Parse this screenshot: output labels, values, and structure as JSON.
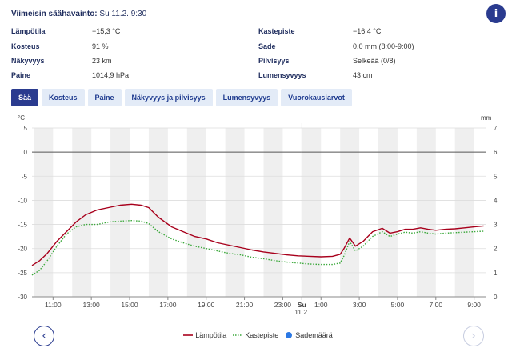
{
  "latest": {
    "label": "Viimeisin säähavainto:",
    "value": "Su 11.2. 9:30"
  },
  "info_icon": "i",
  "observations": {
    "left": [
      {
        "label": "Lämpötila",
        "value": "−15,3 °C"
      },
      {
        "label": "Kosteus",
        "value": "91 %"
      },
      {
        "label": "Näkyvyys",
        "value": "23 km"
      },
      {
        "label": "Paine",
        "value": "1014,9 hPa"
      }
    ],
    "right": [
      {
        "label": "Kastepiste",
        "value": "−16,4 °C"
      },
      {
        "label": "Sade",
        "value": "0,0 mm (8:00-9:00)"
      },
      {
        "label": "Pilvisyys",
        "value": "Selkeää (0/8)"
      },
      {
        "label": "Lumensyvyys",
        "value": "43 cm"
      }
    ]
  },
  "tabs": [
    "Sää",
    "Kosteus",
    "Paine",
    "Näkyvyys ja pilvisyys",
    "Lumensyvyys",
    "Vuorokausiarvot"
  ],
  "active_tab": 0,
  "legend": [
    "Lämpötila",
    "Kastepiste",
    "Sademäärä"
  ],
  "nav": {
    "prev": "‹",
    "next": "›"
  },
  "colors": {
    "temperature": "#a8001c",
    "dewpoint": "#3aa83a",
    "precip": "#2b78e4",
    "accent": "#2a3b8f"
  },
  "chart_data": {
    "type": "line",
    "y_left_unit": "°C",
    "y_right_unit": "mm",
    "ylim_left": [
      -30,
      5
    ],
    "ylim_right": [
      0,
      7
    ],
    "y_left_ticks": [
      "5",
      "0",
      "-5",
      "-10",
      "-15",
      "-20",
      "-25",
      "-30"
    ],
    "y_right_ticks": [
      "7",
      "6",
      "5",
      "4",
      "3",
      "2",
      "1",
      "0"
    ],
    "x_ticks": [
      "11:00",
      "13:00",
      "15:00",
      "17:00",
      "19:00",
      "21:00",
      "23:00",
      "Su",
      "1:00",
      "3:00",
      "5:00",
      "7:00",
      "9:00"
    ],
    "x_tick_hours": [
      11,
      13,
      15,
      17,
      19,
      21,
      23,
      24,
      25,
      27,
      29,
      31,
      33
    ],
    "x_day_label": "11.2.",
    "xlim_hours": [
      9.9,
      33.6
    ],
    "series": [
      {
        "name": "Lämpötila",
        "x": [
          9.9,
          10.3,
          10.7,
          11.2,
          11.7,
          12.2,
          12.7,
          13.3,
          13.9,
          14.5,
          15.1,
          15.6,
          16.0,
          16.5,
          17.2,
          17.8,
          18.4,
          19.0,
          19.6,
          20.2,
          20.8,
          21.4,
          22.0,
          22.6,
          23.2,
          23.8,
          24.4,
          25.0,
          25.6,
          26.0,
          26.2,
          26.5,
          26.8,
          27.2,
          27.7,
          28.2,
          28.6,
          29.0,
          29.4,
          29.8,
          30.2,
          30.6,
          31.0,
          31.5,
          32.0,
          32.5,
          33.0,
          33.5
        ],
        "values": [
          -23.5,
          -22.5,
          -21.0,
          -18.5,
          -16.5,
          -14.5,
          -13.0,
          -12.0,
          -11.5,
          -11.0,
          -10.8,
          -11.0,
          -11.5,
          -13.5,
          -15.5,
          -16.5,
          -17.5,
          -18.0,
          -18.8,
          -19.3,
          -19.8,
          -20.3,
          -20.7,
          -21.0,
          -21.3,
          -21.5,
          -21.6,
          -21.7,
          -21.6,
          -21.2,
          -20.0,
          -17.8,
          -19.5,
          -18.5,
          -16.5,
          -15.8,
          -16.8,
          -16.5,
          -16.0,
          -16.0,
          -15.7,
          -16.0,
          -16.2,
          -16.0,
          -15.9,
          -15.7,
          -15.5,
          -15.3
        ]
      },
      {
        "name": "Kastepiste",
        "x": [
          9.9,
          10.3,
          10.7,
          11.2,
          11.7,
          12.2,
          12.7,
          13.3,
          13.9,
          14.5,
          15.1,
          15.6,
          16.0,
          16.5,
          17.2,
          17.8,
          18.4,
          19.0,
          19.6,
          20.2,
          20.8,
          21.4,
          22.0,
          22.6,
          23.2,
          23.8,
          24.4,
          25.0,
          25.6,
          26.0,
          26.2,
          26.5,
          26.8,
          27.2,
          27.7,
          28.2,
          28.6,
          29.0,
          29.4,
          29.8,
          30.2,
          30.6,
          31.0,
          31.5,
          32.0,
          32.5,
          33.0,
          33.5
        ],
        "values": [
          -25.5,
          -24.5,
          -22.5,
          -19.5,
          -17.0,
          -15.5,
          -15.0,
          -15.0,
          -14.5,
          -14.3,
          -14.2,
          -14.3,
          -14.8,
          -16.5,
          -18.0,
          -18.8,
          -19.5,
          -20.0,
          -20.5,
          -21.0,
          -21.3,
          -21.8,
          -22.1,
          -22.5,
          -22.8,
          -23.0,
          -23.2,
          -23.3,
          -23.3,
          -23.0,
          -21.5,
          -18.5,
          -20.5,
          -19.5,
          -17.5,
          -16.5,
          -17.5,
          -17.0,
          -16.6,
          -16.8,
          -16.5,
          -16.8,
          -17.0,
          -16.8,
          -16.7,
          -16.6,
          -16.5,
          -16.4
        ]
      },
      {
        "name": "Sademäärä",
        "x": [],
        "values": []
      }
    ]
  }
}
